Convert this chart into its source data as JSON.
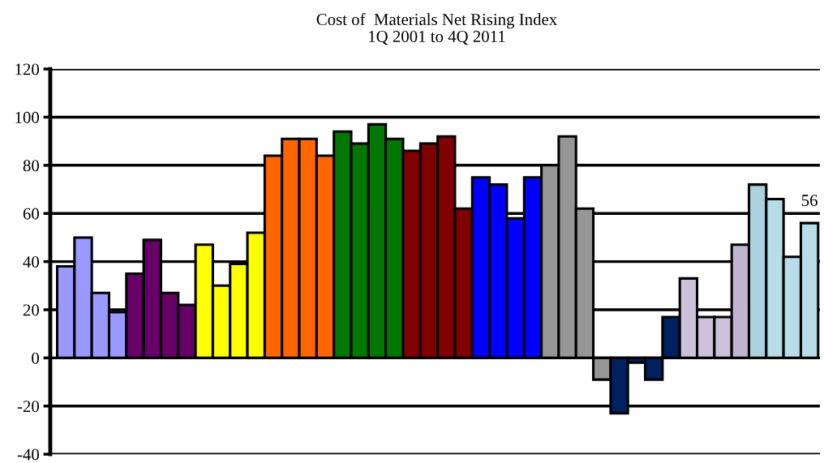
{
  "chart_data": {
    "type": "bar",
    "title": "Cost of  Materials Net Rising Index",
    "subtitle": "1Q 2001 to 4Q 2011",
    "categories": [
      null,
      null,
      null,
      null,
      null,
      null,
      null,
      null,
      null,
      null,
      null,
      null,
      null,
      null,
      null,
      null,
      null,
      null,
      null,
      null,
      null,
      null,
      null,
      null,
      null,
      null,
      null,
      null,
      null,
      null,
      null,
      null,
      null,
      null,
      null,
      null,
      null,
      null,
      null,
      null,
      null,
      null,
      null,
      null
    ],
    "values": [
      38,
      50,
      27,
      19,
      35,
      49,
      27,
      22,
      47,
      30,
      39,
      52,
      84,
      91,
      91,
      84,
      94,
      89,
      97,
      91,
      86,
      89,
      92,
      62,
      75,
      72,
      58,
      75,
      80,
      92,
      62,
      -9,
      -23,
      -2,
      -9,
      17,
      33,
      17,
      17,
      47,
      72,
      66,
      42,
      56
    ],
    "colors": [
      "#9999ff",
      "#9999ff",
      "#9999ff",
      "#9999ff",
      "#660066",
      "#660066",
      "#660066",
      "#660066",
      "#ffff00",
      "#ffff00",
      "#ffff00",
      "#ffff00",
      "#ff6600",
      "#ff6600",
      "#ff6600",
      "#ff6600",
      "#007700",
      "#007700",
      "#007700",
      "#007700",
      "#800000",
      "#800000",
      "#800000",
      "#800000",
      "#0000ff",
      "#0000ff",
      "#0000ff",
      "#0000ff",
      "#969696",
      "#969696",
      "#969696",
      "#969696",
      "#002060",
      "#002060",
      "#002060",
      "#002060",
      "#ccc0da",
      "#ccc0da",
      "#ccc0da",
      "#bfb5cf",
      "#abd1dc",
      "#b7dde8",
      "#b7dde8",
      "#b7dde8"
    ],
    "value_labels": [
      null,
      null,
      null,
      null,
      null,
      null,
      null,
      null,
      null,
      null,
      null,
      null,
      null,
      null,
      null,
      null,
      null,
      null,
      null,
      null,
      null,
      null,
      null,
      null,
      null,
      null,
      null,
      null,
      null,
      null,
      null,
      null,
      null,
      null,
      null,
      null,
      null,
      null,
      null,
      null,
      null,
      null,
      null,
      "56"
    ],
    "ylim": [
      -40,
      120
    ],
    "yticks": [
      -40,
      -20,
      0,
      20,
      40,
      60,
      80,
      100,
      120
    ],
    "grid": "y",
    "legend": false
  }
}
